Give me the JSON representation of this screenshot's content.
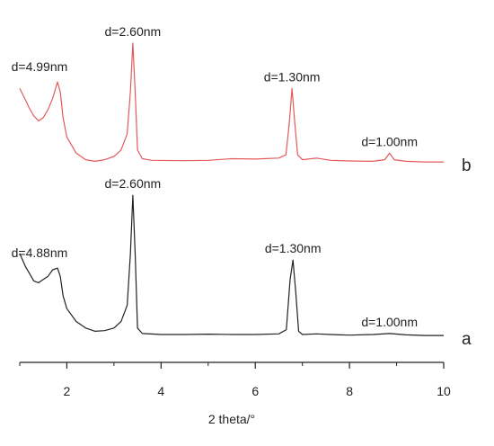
{
  "chart_data": {
    "type": "line",
    "title": "",
    "xlabel": "2 theta/°",
    "ylabel": "",
    "xlim": [
      1,
      10
    ],
    "ylim": [
      0,
      100
    ],
    "x_ticks": [
      2,
      4,
      6,
      8,
      10
    ],
    "grid": false,
    "legend": "none",
    "series": [
      {
        "name": "b",
        "color": "#e35a5a",
        "points": [
          [
            1.0,
            81
          ],
          [
            1.12,
            77.5
          ],
          [
            1.2,
            75
          ],
          [
            1.3,
            72.5
          ],
          [
            1.4,
            71
          ],
          [
            1.5,
            72
          ],
          [
            1.6,
            74.5
          ],
          [
            1.7,
            78
          ],
          [
            1.8,
            83
          ],
          [
            1.86,
            80
          ],
          [
            1.92,
            72
          ],
          [
            2.0,
            66
          ],
          [
            2.2,
            61
          ],
          [
            2.4,
            59
          ],
          [
            2.6,
            58.5
          ],
          [
            2.8,
            59
          ],
          [
            3.0,
            60
          ],
          [
            3.15,
            62
          ],
          [
            3.28,
            67
          ],
          [
            3.35,
            80
          ],
          [
            3.4,
            95
          ],
          [
            3.45,
            80
          ],
          [
            3.5,
            62
          ],
          [
            3.6,
            59.3
          ],
          [
            3.8,
            58.8
          ],
          [
            4.5,
            58.7
          ],
          [
            5.0,
            58.8
          ],
          [
            5.5,
            59.3
          ],
          [
            6.0,
            59.2
          ],
          [
            6.5,
            59.5
          ],
          [
            6.65,
            60.5
          ],
          [
            6.72,
            70
          ],
          [
            6.78,
            81
          ],
          [
            6.84,
            70
          ],
          [
            6.9,
            60.5
          ],
          [
            7.0,
            59
          ],
          [
            7.3,
            59.5
          ],
          [
            7.6,
            58.8
          ],
          [
            8.0,
            58.6
          ],
          [
            8.5,
            58.5
          ],
          [
            8.75,
            59
          ],
          [
            8.85,
            61
          ],
          [
            8.95,
            59
          ],
          [
            9.2,
            58.5
          ],
          [
            9.6,
            58.3
          ],
          [
            10.0,
            58.3
          ]
        ],
        "annotations": [
          {
            "text": "d=4.99nm",
            "x": 1.8,
            "y": 83
          },
          {
            "text": "d=2.60nm",
            "x": 3.4,
            "y": 95
          },
          {
            "text": "d=1.30nm",
            "x": 6.78,
            "y": 81
          },
          {
            "text": "d=1.00nm",
            "x": 8.85,
            "y": 61
          }
        ]
      },
      {
        "name": "a",
        "color": "#222222",
        "points": [
          [
            1.0,
            30
          ],
          [
            1.12,
            26
          ],
          [
            1.2,
            24
          ],
          [
            1.3,
            21.5
          ],
          [
            1.4,
            21
          ],
          [
            1.5,
            22
          ],
          [
            1.6,
            23
          ],
          [
            1.7,
            25
          ],
          [
            1.8,
            25.5
          ],
          [
            1.86,
            23
          ],
          [
            1.92,
            17
          ],
          [
            2.0,
            13
          ],
          [
            2.2,
            9
          ],
          [
            2.4,
            7
          ],
          [
            2.6,
            6
          ],
          [
            2.8,
            6.2
          ],
          [
            3.0,
            7
          ],
          [
            3.15,
            9
          ],
          [
            3.28,
            14
          ],
          [
            3.35,
            30
          ],
          [
            3.4,
            48
          ],
          [
            3.45,
            30
          ],
          [
            3.5,
            7
          ],
          [
            3.6,
            5.3
          ],
          [
            4.0,
            5
          ],
          [
            4.5,
            5
          ],
          [
            5.0,
            5.1
          ],
          [
            5.5,
            5
          ],
          [
            6.0,
            5
          ],
          [
            6.5,
            5.2
          ],
          [
            6.66,
            6.5
          ],
          [
            6.74,
            22
          ],
          [
            6.8,
            28
          ],
          [
            6.86,
            18
          ],
          [
            6.92,
            6
          ],
          [
            7.0,
            5
          ],
          [
            7.3,
            5.2
          ],
          [
            7.6,
            5
          ],
          [
            8.0,
            4.8
          ],
          [
            8.5,
            5
          ],
          [
            8.85,
            5.3
          ],
          [
            9.2,
            4.9
          ],
          [
            9.6,
            4.7
          ],
          [
            10.0,
            4.7
          ]
        ],
        "annotations": [
          {
            "text": "d=4.88nm",
            "x": 1.8,
            "y": 25.5
          },
          {
            "text": "d=2.60nm",
            "x": 3.4,
            "y": 48
          },
          {
            "text": "d=1.30nm",
            "x": 6.8,
            "y": 28
          },
          {
            "text": "d=1.00nm",
            "x": 8.85,
            "y": 5.3
          }
        ]
      }
    ]
  }
}
